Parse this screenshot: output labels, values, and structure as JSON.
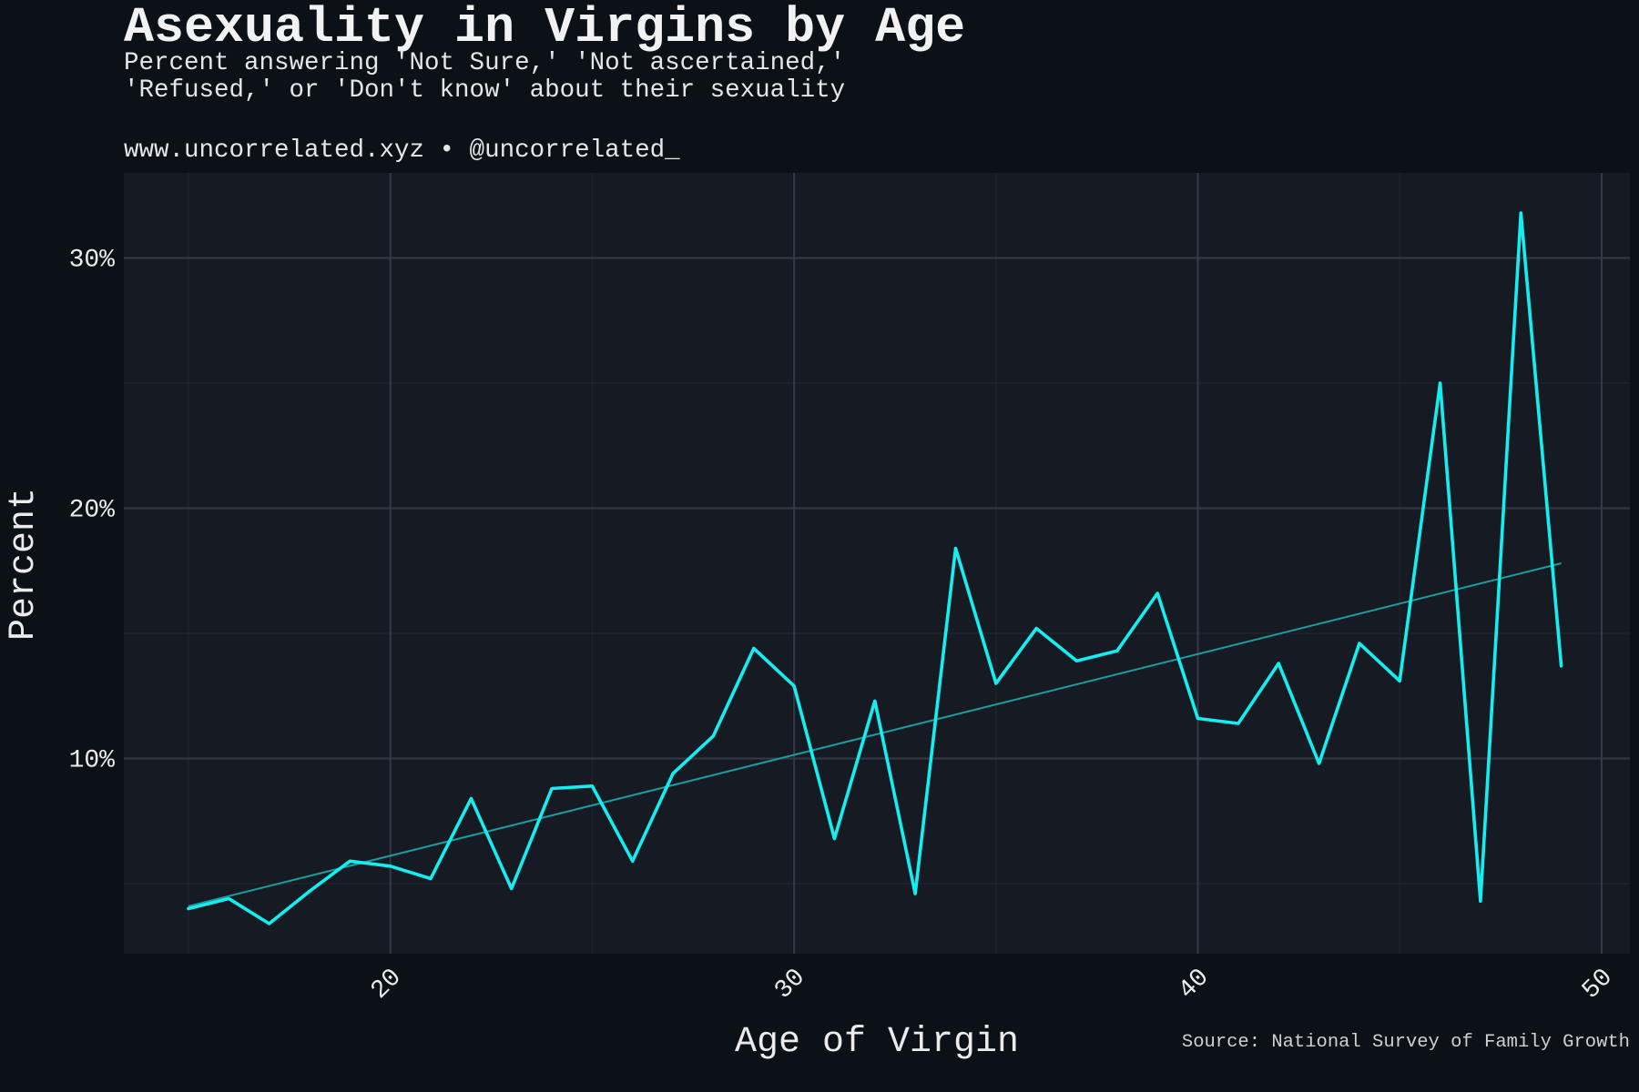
{
  "page": {
    "title": "Asexuality in Virgins by Age",
    "subtitle_line1": "Percent answering 'Not Sure,' 'Not ascertained,'",
    "subtitle_line2": "'Refused,' or 'Don't know' about their sexuality",
    "byline": "www.uncorrelated.xyz • @uncorrelated_",
    "caption": "Source: National Survey of Family Growth"
  },
  "colors": {
    "background": "#0c1017",
    "panel": "#161b23",
    "grid_major": "#343a43",
    "grid_minor": "#1f252d",
    "line": "#14eef0",
    "trend": "#1a9d9e",
    "text": "#ebebeb"
  },
  "chart_data": {
    "type": "line",
    "title": "Asexuality in Virgins by Age",
    "xlabel": "Age of Virgin",
    "ylabel": "Percent",
    "xlim": [
      13.4,
      50.7
    ],
    "ylim": [
      2.2,
      33.4
    ],
    "x_ticks": [
      20,
      30,
      40,
      50
    ],
    "y_ticks": [
      10,
      20,
      30
    ],
    "y_tick_labels": [
      "10%",
      "20%",
      "30%"
    ],
    "grid": true,
    "series": [
      {
        "x": [
          15,
          16,
          17,
          18,
          19,
          20,
          21,
          22,
          23,
          24,
          25,
          26,
          27,
          28,
          29,
          30,
          31,
          32,
          33,
          34,
          35,
          36,
          37,
          38,
          39,
          40,
          41,
          42,
          43,
          44,
          45,
          46,
          47,
          48,
          49
        ],
        "values": [
          4.0,
          4.4,
          3.4,
          4.7,
          5.9,
          5.7,
          5.2,
          8.4,
          4.8,
          8.8,
          8.9,
          5.9,
          9.4,
          10.9,
          14.4,
          12.9,
          6.8,
          12.3,
          4.6,
          18.4,
          13.0,
          15.2,
          13.9,
          14.3,
          16.6,
          11.6,
          11.4,
          13.8,
          9.8,
          14.6,
          13.1,
          25.0,
          4.3,
          31.8,
          13.7
        ]
      }
    ],
    "trend": {
      "x": [
        15,
        49
      ],
      "values": [
        4.1,
        17.8
      ]
    }
  }
}
